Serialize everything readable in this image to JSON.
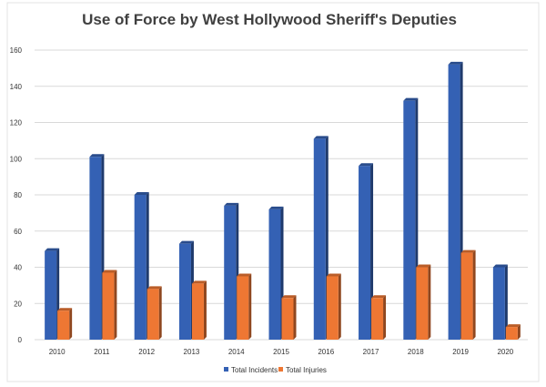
{
  "chart_data": {
    "type": "bar",
    "title": "Use of Force by West Hollywood Sheriff's Deputies",
    "categories": [
      "2010",
      "2011",
      "2012",
      "2013",
      "2014",
      "2015",
      "2016",
      "2017",
      "2018",
      "2019",
      "2020"
    ],
    "series": [
      {
        "name": "Total Incidents",
        "color": "#3461b4",
        "values": [
          49,
          101,
          80,
          53,
          74,
          72,
          111,
          96,
          132,
          152,
          40
        ]
      },
      {
        "name": "Total Injuries",
        "color": "#ee7733",
        "values": [
          16,
          37,
          28,
          31,
          35,
          23,
          35,
          23,
          40,
          48,
          7
        ]
      }
    ],
    "yticks": [
      "0",
      "20",
      "40",
      "60",
      "80",
      "100",
      "120",
      "140",
      "160"
    ],
    "ylim": [
      0,
      160
    ],
    "grid": true,
    "legend_position": "bottom",
    "xlabel": "",
    "ylabel": ""
  }
}
